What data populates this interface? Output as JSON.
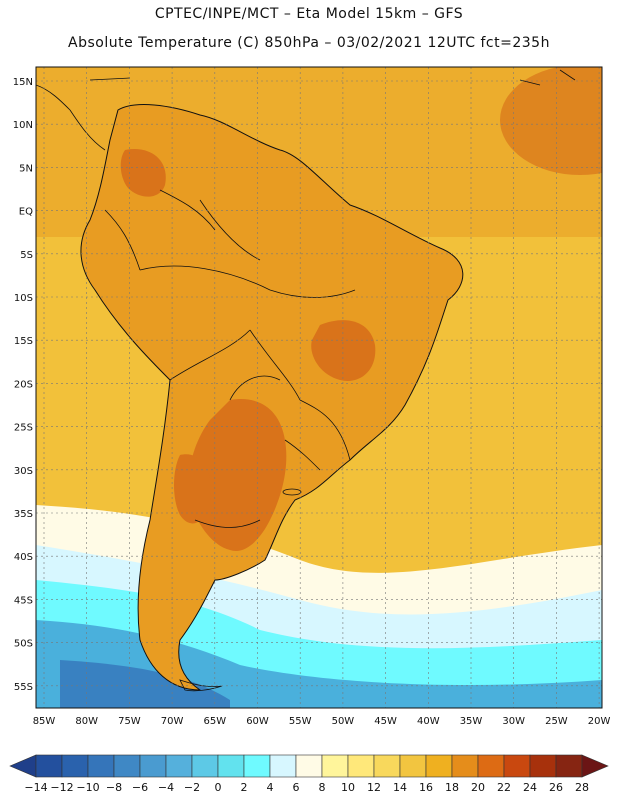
{
  "header": {
    "line1": "CPTEC/INPE/MCT –  Eta Model 15km – GFS",
    "line2": "Absolute Temperature (C) 850hPa – 03/02/2021 12UTC fct=235h"
  },
  "axes": {
    "lat_labels": [
      "15N",
      "10N",
      "5N",
      "EQ",
      "5S",
      "10S",
      "15S",
      "20S",
      "25S",
      "30S",
      "35S",
      "40S",
      "45S",
      "50S",
      "55S"
    ],
    "lon_labels": [
      "85W",
      "80W",
      "75W",
      "70W",
      "65W",
      "60W",
      "55W",
      "50W",
      "45W",
      "40W",
      "35W",
      "30W",
      "25W",
      "20W"
    ]
  },
  "colorbar": {
    "labels": [
      "-14",
      "-12",
      "-10",
      "-8",
      "-6",
      "-4",
      "-2",
      "0",
      "2",
      "4",
      "6",
      "8",
      "10",
      "12",
      "14",
      "16",
      "18",
      "20",
      "22",
      "24",
      "26",
      "28"
    ],
    "colors": [
      "#1f3f8a",
      "#23509e",
      "#2a62ad",
      "#3575ba",
      "#3f88c5",
      "#4a9bd0",
      "#55b0dc",
      "#5dc9e6",
      "#62e2ee",
      "#6ffaff",
      "#d7f7ff",
      "#fffbe6",
      "#fff59b",
      "#ffe87a",
      "#f8d85c",
      "#f2c540",
      "#efb020",
      "#e58d1b",
      "#dd6b14",
      "#c9480f",
      "#a7310c",
      "#862512",
      "#6b1515"
    ]
  },
  "map": {
    "background_color": "#f2c13a",
    "land_color": "#e89c22",
    "hot_color": "#d9731a",
    "cold_colors": [
      "#fffbe6",
      "#d7f7ff",
      "#6ffaff",
      "#4ab0dc",
      "#3575ba"
    ]
  }
}
